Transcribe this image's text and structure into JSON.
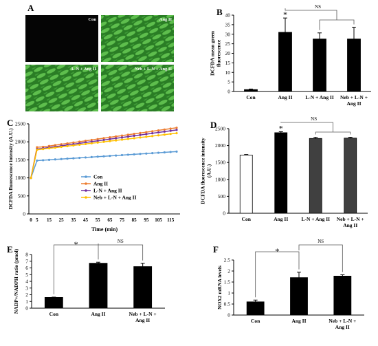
{
  "panels": {
    "A": {
      "letter": "A",
      "tiles": [
        {
          "label": "Con",
          "style": "dark"
        },
        {
          "label": "Ang II",
          "style": "green"
        },
        {
          "label": "L-N + Ang II",
          "style": "green"
        },
        {
          "label": "Neb + L-N + Ang II",
          "style": "green"
        }
      ]
    },
    "B": {
      "letter": "B"
    },
    "C": {
      "letter": "C"
    },
    "D": {
      "letter": "D"
    },
    "E": {
      "letter": "E"
    },
    "F": {
      "letter": "F"
    }
  },
  "colors": {
    "bar": "#000000",
    "con_line": "#5b9bd5",
    "angii_line": "#ed7d31",
    "ln_line": "#7030a0",
    "neb_line": "#ffc000",
    "open_bar": "#ffffff",
    "grey_bar": "#404040"
  },
  "chart_data": [
    {
      "id": "B",
      "type": "bar",
      "categories": [
        "Con",
        "Ang II",
        "L-N + Ang II",
        "Neb + L-N + Ang II"
      ],
      "category_lines": [
        [
          "Con"
        ],
        [
          "Ang II"
        ],
        [
          "L-N + Ang II"
        ],
        [
          "Neb + L-N +",
          "Ang II"
        ]
      ],
      "values": [
        1,
        31,
        27.5,
        27.5
      ],
      "errors": [
        0.3,
        7.5,
        3.2,
        6.2
      ],
      "ylabel_lines": [
        "DCFDA mean green",
        "fluorescence"
      ],
      "ylim": [
        0,
        40
      ],
      "yticks": [
        0,
        5,
        10,
        15,
        20,
        25,
        30,
        35,
        40
      ],
      "star_on": 1,
      "star": "*",
      "ns": "NS"
    },
    {
      "id": "C",
      "type": "line",
      "x": [
        0,
        5,
        10,
        15,
        20,
        25,
        30,
        35,
        40,
        45,
        50,
        55,
        60,
        65,
        70,
        75,
        80,
        85,
        90,
        95,
        100,
        105,
        110,
        115,
        120
      ],
      "xticks": [
        0,
        5,
        15,
        25,
        35,
        45,
        55,
        65,
        75,
        85,
        95,
        105,
        115
      ],
      "xlabel": "Time (min)",
      "ylabel": "DCFDA fluorescence intensity (A.U.)",
      "ylim": [
        0,
        2500
      ],
      "yticks": [
        0,
        500,
        1000,
        1500,
        2000,
        2500
      ],
      "series": [
        {
          "name": "Con",
          "start": [
            1000,
            1480
          ],
          "from": 1490,
          "to": 1730
        },
        {
          "name": "Ang II",
          "start": [
            1000,
            1850
          ],
          "from": 1860,
          "to": 2390
        },
        {
          "name": "L-N + Ang II",
          "start": [
            1000,
            1800
          ],
          "from": 1820,
          "to": 2330
        },
        {
          "name": "Neb + L-N + Ang II",
          "start": [
            1000,
            1780
          ],
          "from": 1800,
          "to": 2240
        }
      ],
      "legend": "center-right"
    },
    {
      "id": "D",
      "type": "bar",
      "categories": [
        "Con",
        "Ang II",
        "L-N + Ang II",
        "Neb + L-N + Ang II"
      ],
      "category_lines": [
        [
          "Con"
        ],
        [
          "Ang II"
        ],
        [
          "L-N + Ang II"
        ],
        [
          "Neb + L-N +",
          "Ang II"
        ]
      ],
      "values": [
        1720,
        2380,
        2210,
        2220
      ],
      "errors": [
        15,
        30,
        35,
        25
      ],
      "fills": [
        "open",
        "bar",
        "grey",
        "grey"
      ],
      "ylabel_lines": [
        "DCFDA fluorescence intensity",
        "(A.U.)"
      ],
      "ylim": [
        0,
        2500
      ],
      "yticks": [
        0,
        500,
        1000,
        1500,
        2000,
        2500
      ],
      "star_on": 1,
      "star": "*",
      "ns": "NS"
    },
    {
      "id": "E",
      "type": "bar",
      "categories": [
        "Con",
        "Ang II",
        "Neb + L-N + Ang II"
      ],
      "category_lines": [
        [
          "Con"
        ],
        [
          "Ang II"
        ],
        [
          "Neb + L-N +",
          "Ang II"
        ]
      ],
      "values": [
        1.6,
        6.7,
        6.2
      ],
      "errors": [
        0.05,
        0.15,
        0.5
      ],
      "ylabel_lines": [
        "NADP+/NADPH ratio (pmol)"
      ],
      "ylim": [
        0,
        8
      ],
      "yticks": [
        0,
        1,
        2,
        3,
        4,
        5,
        6,
        7,
        8
      ],
      "star": "*",
      "ns": "NS"
    },
    {
      "id": "F",
      "type": "bar",
      "categories": [
        "Con",
        "Ang II",
        "Neb + L-N + Ang II"
      ],
      "category_lines": [
        [
          "Con"
        ],
        [
          "Ang II"
        ],
        [
          "Neb + L-N +",
          "Ang II"
        ]
      ],
      "values": [
        0.6,
        1.7,
        1.77
      ],
      "errors": [
        0.08,
        0.25,
        0.06
      ],
      "ylabel_lines": [
        "NOX2 mRNA levels"
      ],
      "ylim": [
        0,
        2.5
      ],
      "yticks": [
        0,
        0.5,
        1,
        1.5,
        2,
        2.5
      ],
      "star": "*",
      "ns": "NS"
    }
  ]
}
